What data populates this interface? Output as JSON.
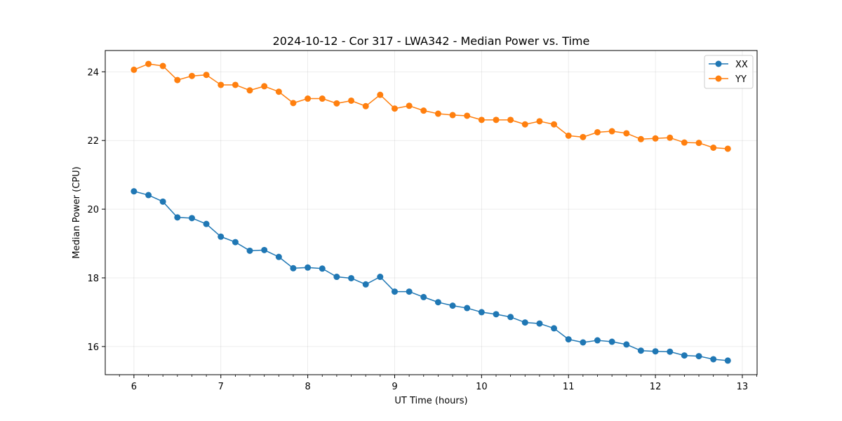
{
  "chart_data": {
    "type": "line",
    "title": "2024-10-12 - Cor 317 - LWA342 - Median Power vs. Time",
    "xlabel": "UT Time (hours)",
    "ylabel": "Median Power (CPU)",
    "xlim": [
      5.67,
      13.17
    ],
    "ylim": [
      15.18,
      24.62
    ],
    "xticks": [
      6,
      7,
      8,
      9,
      10,
      11,
      12,
      13
    ],
    "yticks": [
      16,
      18,
      20,
      22,
      24
    ],
    "grid": true,
    "legend_position": "top-right",
    "x": [
      6.0,
      6.167,
      6.333,
      6.5,
      6.667,
      6.833,
      7.0,
      7.167,
      7.333,
      7.5,
      7.667,
      7.833,
      8.0,
      8.167,
      8.333,
      8.5,
      8.667,
      8.833,
      9.0,
      9.167,
      9.333,
      9.5,
      9.667,
      9.833,
      10.0,
      10.167,
      10.333,
      10.5,
      10.667,
      10.833,
      11.0,
      11.167,
      11.333,
      11.5,
      11.667,
      11.833,
      12.0,
      12.167,
      12.333,
      12.5,
      12.667,
      12.833
    ],
    "series": [
      {
        "name": "XX",
        "color": "#1f77b4",
        "values": [
          20.52,
          20.41,
          20.22,
          19.76,
          19.74,
          19.57,
          19.2,
          19.04,
          18.79,
          18.81,
          18.61,
          18.28,
          18.3,
          18.27,
          18.03,
          17.99,
          17.81,
          18.03,
          17.6,
          17.6,
          17.44,
          17.29,
          17.19,
          17.12,
          17.0,
          16.94,
          16.86,
          16.7,
          16.67,
          16.53,
          16.21,
          16.12,
          16.18,
          16.14,
          16.06,
          15.88,
          15.86,
          15.85,
          15.74,
          15.72,
          15.63,
          15.59
        ]
      },
      {
        "name": "YY",
        "color": "#ff7f0e",
        "values": [
          24.06,
          24.23,
          24.17,
          23.76,
          23.88,
          23.91,
          23.62,
          23.62,
          23.46,
          23.58,
          23.42,
          23.09,
          23.22,
          23.22,
          23.08,
          23.16,
          23.0,
          23.33,
          22.93,
          23.01,
          22.87,
          22.78,
          22.74,
          22.72,
          22.6,
          22.6,
          22.6,
          22.47,
          22.56,
          22.47,
          22.14,
          22.1,
          22.24,
          22.27,
          22.21,
          22.04,
          22.06,
          22.08,
          21.94,
          21.93,
          21.79,
          21.76
        ]
      }
    ]
  }
}
